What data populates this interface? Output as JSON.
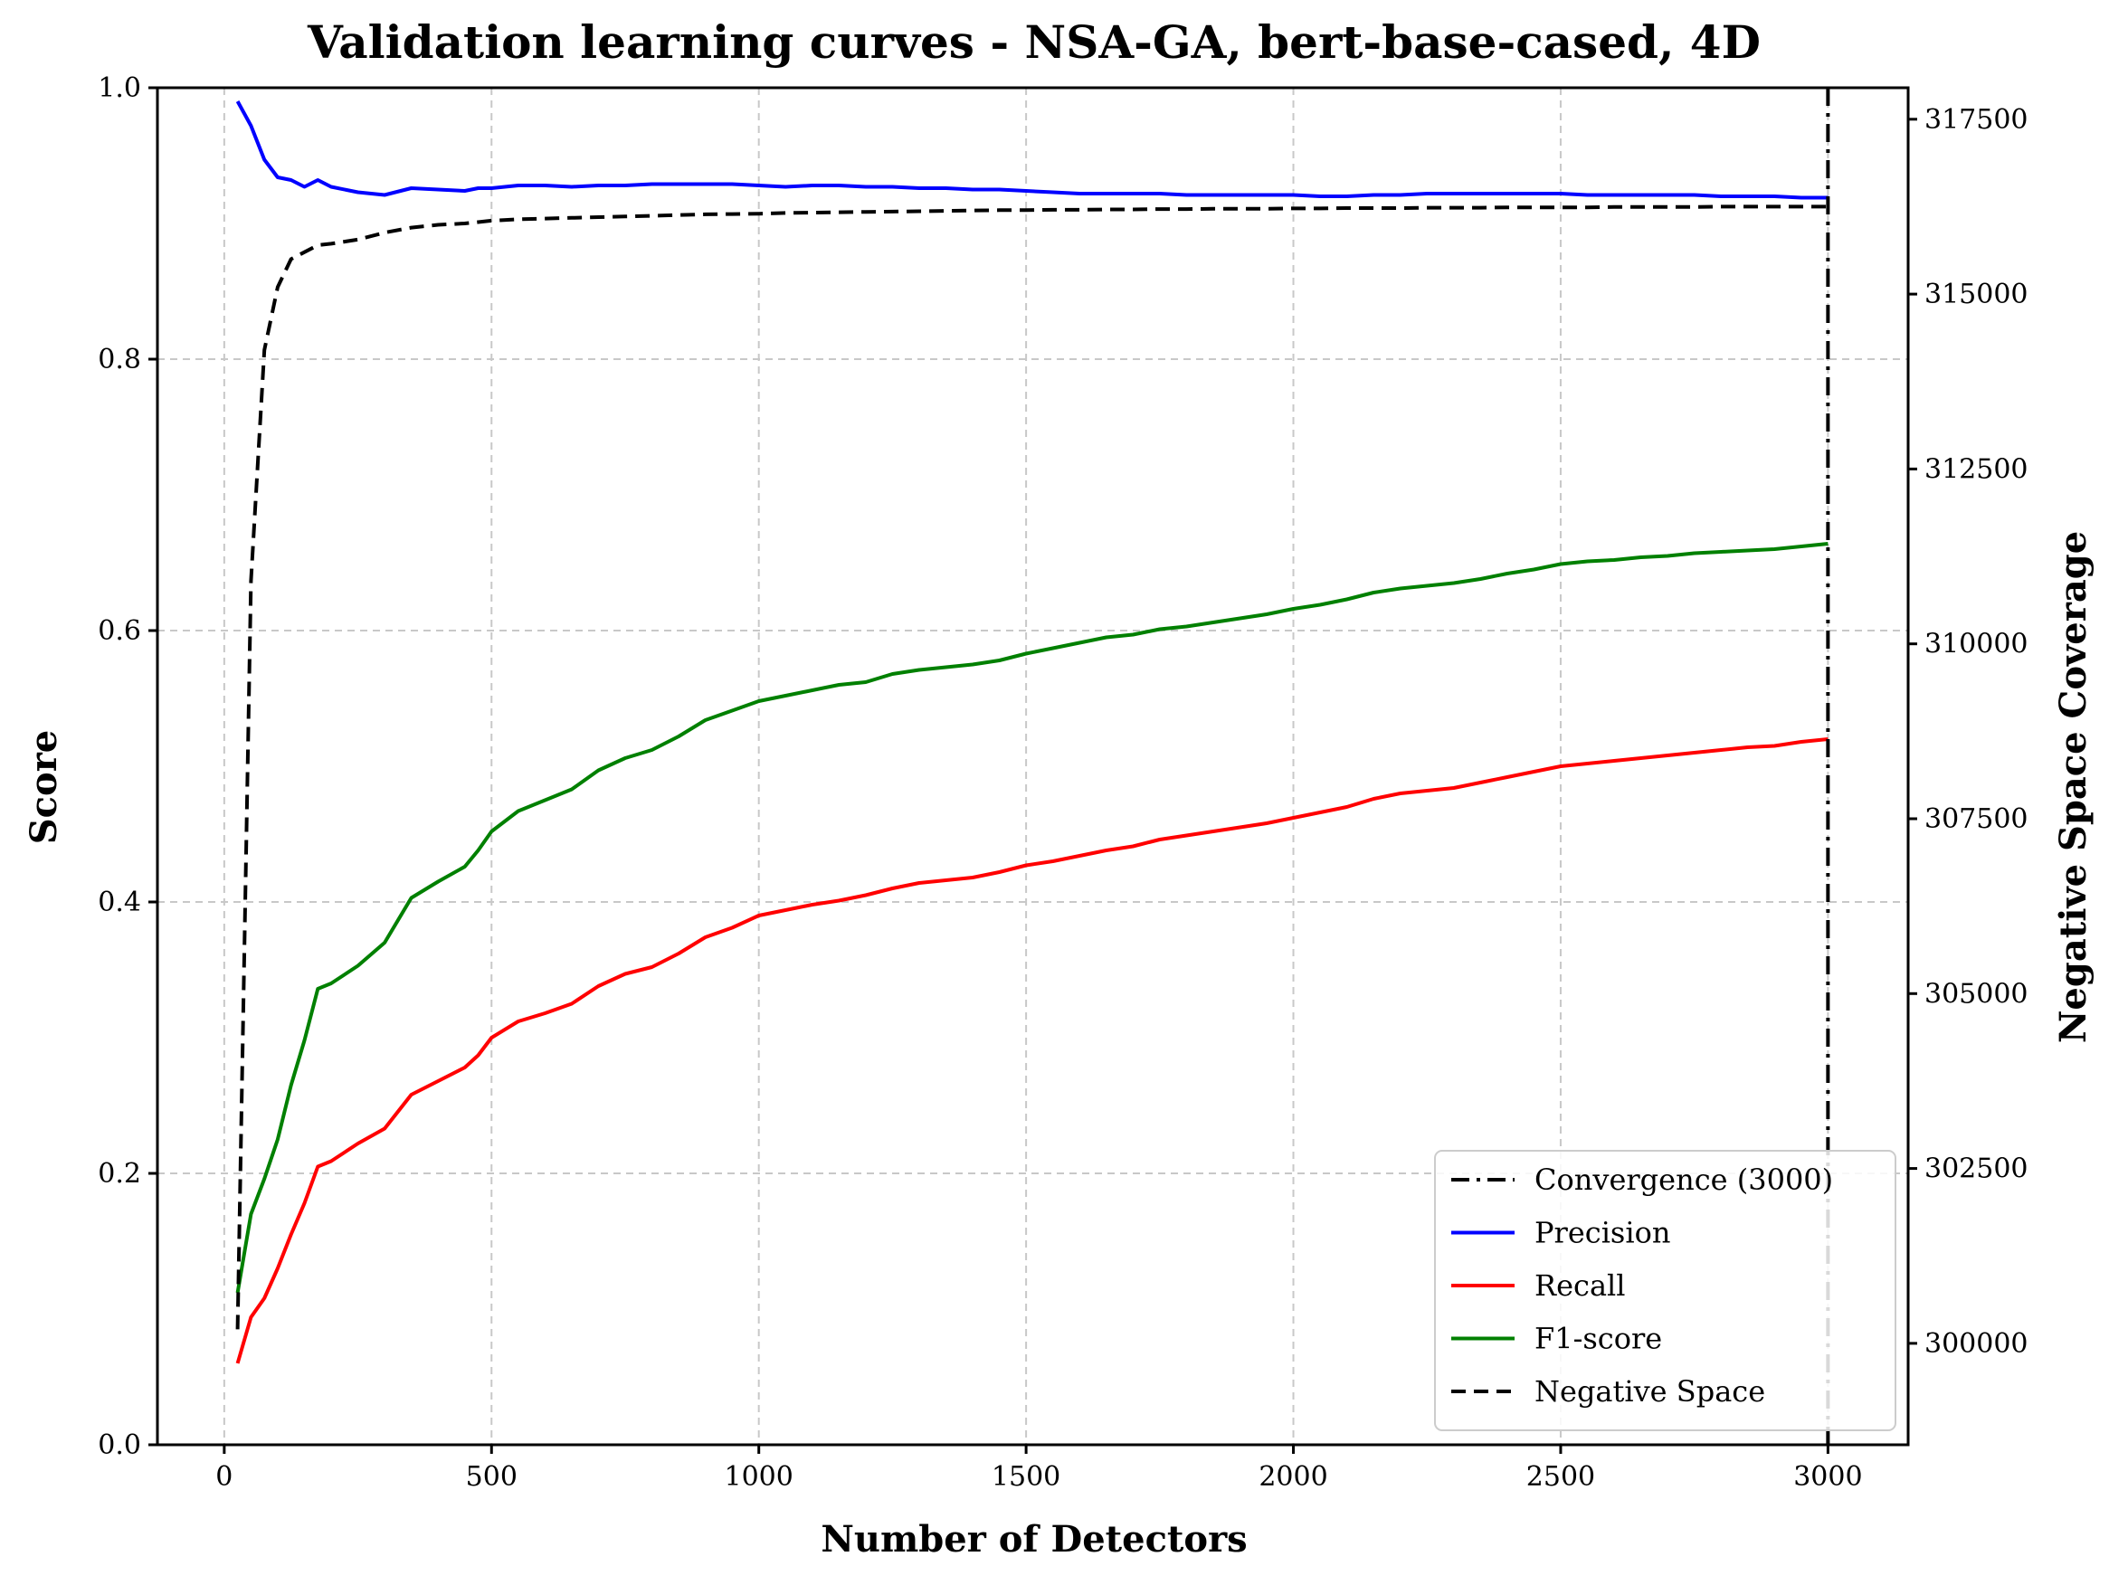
{
  "chart_data": {
    "type": "line",
    "title": "Validation learning curves - NSA-GA, bert-base-cased, 4D",
    "xlabel": "Number of Detectors",
    "ylabel": "Score",
    "y2label": "Negative Space Coverage",
    "xlim": [
      -125,
      3150
    ],
    "ylim": [
      0.0,
      1.0
    ],
    "y2lim": [
      298550,
      317950
    ],
    "xticks": [
      0,
      500,
      1000,
      1500,
      2000,
      2500,
      3000
    ],
    "yticks": [
      0.0,
      0.2,
      0.4,
      0.6,
      0.8,
      1.0
    ],
    "y2ticks": [
      300000,
      302500,
      305000,
      307500,
      310000,
      312500,
      315000,
      317500
    ],
    "grid": true,
    "legend_position": "lower-right",
    "convergence": {
      "name": "Convergence (3000)",
      "x": 3000,
      "color": "#000000",
      "style": "dashdot"
    },
    "x": [
      25,
      50,
      75,
      100,
      125,
      150,
      175,
      200,
      250,
      300,
      350,
      400,
      450,
      475,
      500,
      550,
      600,
      650,
      700,
      750,
      800,
      850,
      900,
      950,
      1000,
      1050,
      1100,
      1150,
      1200,
      1250,
      1300,
      1350,
      1400,
      1450,
      1500,
      1550,
      1600,
      1650,
      1700,
      1750,
      1800,
      1850,
      1900,
      1950,
      2000,
      2050,
      2100,
      2150,
      2200,
      2250,
      2300,
      2350,
      2400,
      2450,
      2500,
      2550,
      2600,
      2650,
      2700,
      2750,
      2800,
      2850,
      2900,
      2950,
      3000
    ],
    "series": [
      {
        "name": "Precision",
        "axis": "left",
        "color": "#0000ff",
        "style": "solid",
        "values": [
          0.99,
          0.972,
          0.947,
          0.934,
          0.932,
          0.927,
          0.932,
          0.927,
          0.923,
          0.921,
          0.926,
          0.925,
          0.924,
          0.926,
          0.926,
          0.928,
          0.928,
          0.927,
          0.928,
          0.928,
          0.929,
          0.929,
          0.929,
          0.929,
          0.928,
          0.927,
          0.928,
          0.928,
          0.927,
          0.927,
          0.926,
          0.926,
          0.925,
          0.925,
          0.924,
          0.923,
          0.922,
          0.922,
          0.922,
          0.922,
          0.921,
          0.921,
          0.921,
          0.921,
          0.921,
          0.92,
          0.92,
          0.921,
          0.921,
          0.922,
          0.922,
          0.922,
          0.922,
          0.922,
          0.922,
          0.921,
          0.921,
          0.921,
          0.921,
          0.921,
          0.92,
          0.92,
          0.92,
          0.919,
          0.919
        ]
      },
      {
        "name": "Recall",
        "axis": "left",
        "color": "#ff0000",
        "style": "solid",
        "values": [
          0.06,
          0.094,
          0.108,
          0.13,
          0.155,
          0.178,
          0.205,
          0.209,
          0.222,
          0.233,
          0.258,
          0.268,
          0.278,
          0.287,
          0.3,
          0.312,
          0.318,
          0.325,
          0.338,
          0.347,
          0.352,
          0.362,
          0.374,
          0.381,
          0.39,
          0.394,
          0.398,
          0.401,
          0.405,
          0.41,
          0.414,
          0.416,
          0.418,
          0.422,
          0.427,
          0.43,
          0.434,
          0.438,
          0.441,
          0.446,
          0.449,
          0.452,
          0.455,
          0.458,
          0.462,
          0.466,
          0.47,
          0.476,
          0.48,
          0.482,
          0.484,
          0.488,
          0.492,
          0.496,
          0.5,
          0.502,
          0.504,
          0.506,
          0.508,
          0.51,
          0.512,
          0.514,
          0.515,
          0.518,
          0.52
        ]
      },
      {
        "name": "F1-score",
        "axis": "left",
        "color": "#008000",
        "style": "solid",
        "values": [
          0.112,
          0.17,
          0.196,
          0.225,
          0.265,
          0.298,
          0.336,
          0.34,
          0.353,
          0.37,
          0.403,
          0.415,
          0.426,
          0.438,
          0.452,
          0.467,
          0.475,
          0.483,
          0.497,
          0.506,
          0.512,
          0.522,
          0.534,
          0.541,
          0.548,
          0.552,
          0.556,
          0.56,
          0.562,
          0.568,
          0.571,
          0.573,
          0.575,
          0.578,
          0.583,
          0.587,
          0.591,
          0.595,
          0.597,
          0.601,
          0.603,
          0.606,
          0.609,
          0.612,
          0.616,
          0.619,
          0.623,
          0.628,
          0.631,
          0.633,
          0.635,
          0.638,
          0.642,
          0.645,
          0.649,
          0.651,
          0.652,
          0.654,
          0.655,
          0.657,
          0.658,
          0.659,
          0.66,
          0.662,
          0.664
        ]
      },
      {
        "name": "Negative Space",
        "axis": "right",
        "color": "#000000",
        "style": "dashed",
        "values": [
          300200,
          310900,
          314200,
          315100,
          315500,
          315600,
          315700,
          315720,
          315780,
          315880,
          315950,
          315990,
          316010,
          316030,
          316050,
          316070,
          316080,
          316090,
          316100,
          316110,
          316120,
          316130,
          316140,
          316145,
          316150,
          316160,
          316165,
          316170,
          316175,
          316180,
          316185,
          316190,
          316195,
          316200,
          316200,
          316205,
          316205,
          316210,
          316210,
          316215,
          316215,
          316220,
          316220,
          316220,
          316225,
          316225,
          316230,
          316230,
          316230,
          316235,
          316235,
          316235,
          316240,
          316240,
          316240,
          316240,
          316245,
          316245,
          316245,
          316245,
          316250,
          316250,
          316250,
          316250,
          316250
        ]
      }
    ],
    "legend": [
      {
        "label": "Convergence (3000)",
        "color": "#000000",
        "style": "dashdot"
      },
      {
        "label": "Precision",
        "color": "#0000ff",
        "style": "solid"
      },
      {
        "label": "Recall",
        "color": "#ff0000",
        "style": "solid"
      },
      {
        "label": "F1-score",
        "color": "#008000",
        "style": "solid"
      },
      {
        "label": "Negative Space",
        "color": "#000000",
        "style": "dashed"
      }
    ]
  }
}
